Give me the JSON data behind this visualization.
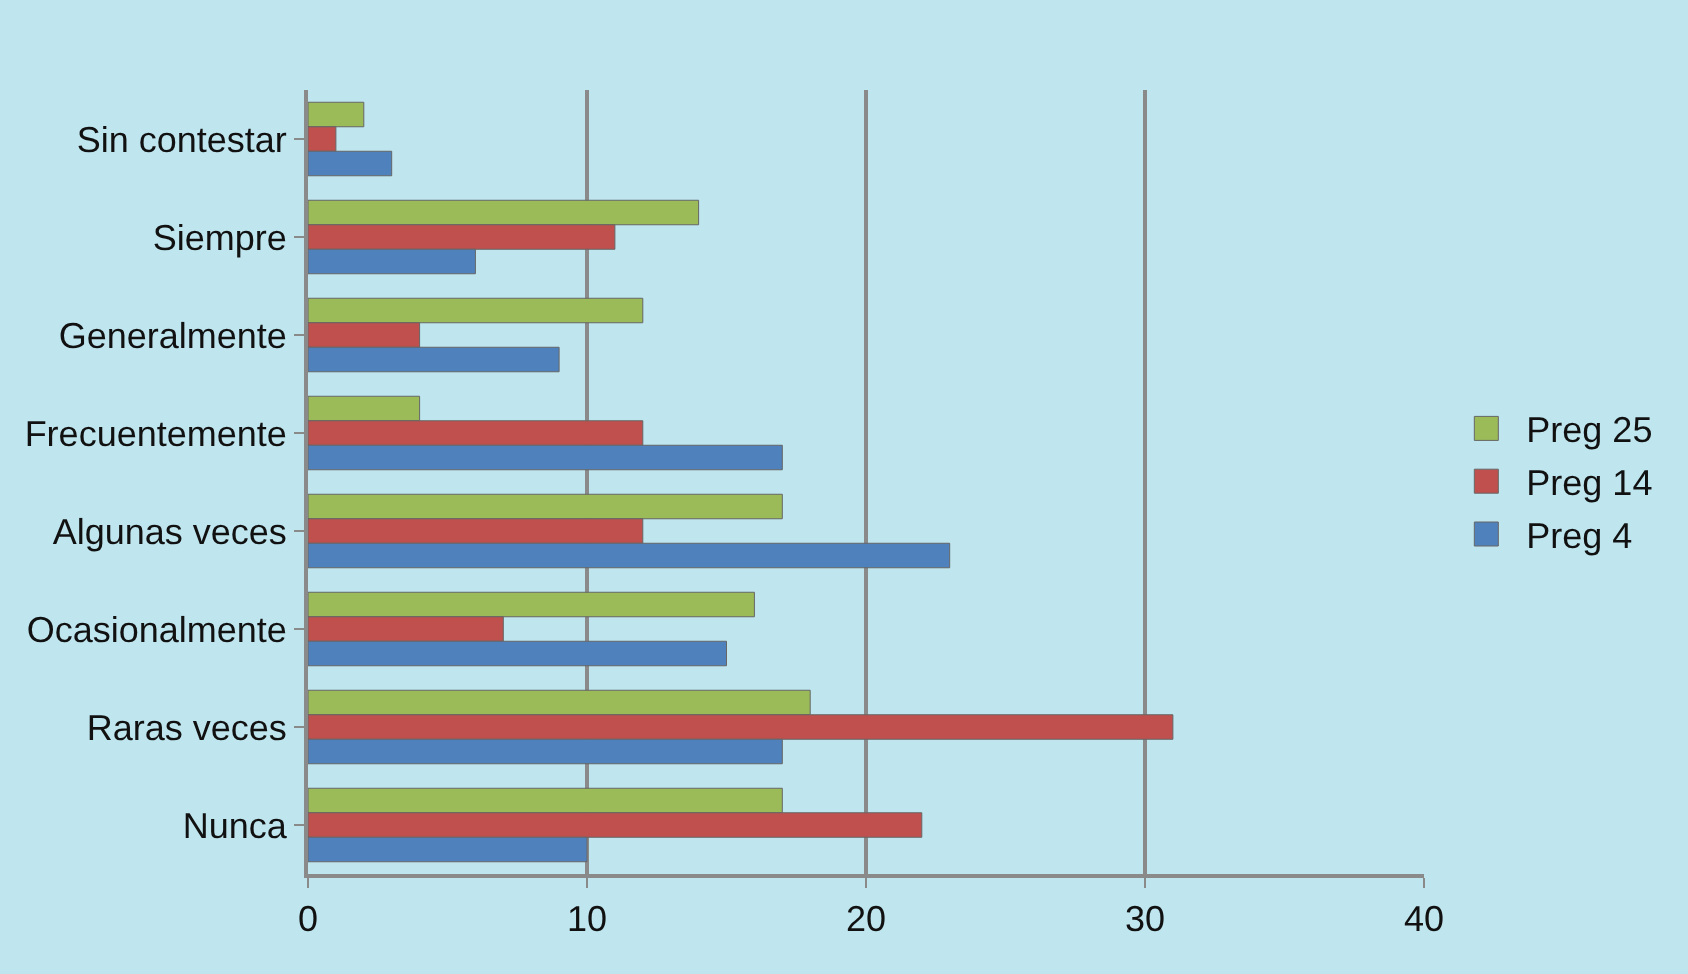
{
  "chart_data": {
    "type": "bar",
    "orientation": "horizontal",
    "categories": [
      "Sin contestar",
      "Siempre",
      "Generalmente",
      "Frecuentemente",
      "Algunas veces",
      "Ocasionalmente",
      "Raras veces",
      "Nunca"
    ],
    "series": [
      {
        "name": "Preg 25",
        "color": "#9bbb59",
        "values": [
          2,
          14,
          12,
          4,
          17,
          16,
          18,
          17
        ]
      },
      {
        "name": "Preg 14",
        "color": "#c0504d",
        "values": [
          1,
          11,
          4,
          12,
          12,
          7,
          31,
          22
        ]
      },
      {
        "name": "Preg 4",
        "color": "#4f81bd",
        "values": [
          3,
          6,
          9,
          17,
          23,
          15,
          17,
          10
        ]
      }
    ],
    "xlim": [
      0,
      40
    ],
    "xticks": [
      0,
      10,
      20,
      30,
      40
    ],
    "grid": "x",
    "legend": "right"
  }
}
